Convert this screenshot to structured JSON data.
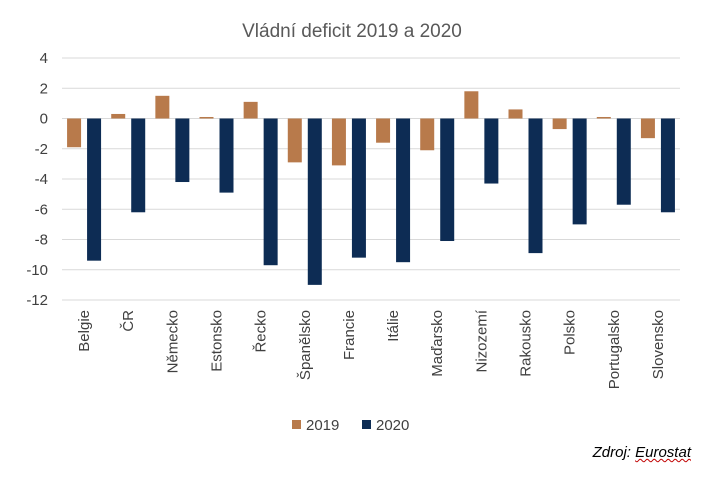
{
  "chart_data": {
    "type": "bar",
    "title": "Vládní deficit 2019 a 2020",
    "categories": [
      "Belgie",
      "ČR",
      "Německo",
      "Estonsko",
      "Řecko",
      "Španělsko",
      "Francie",
      "Itálie",
      "Maďarsko",
      "Nizozemí",
      "Rakousko",
      "Polsko",
      "Portugalsko",
      "Slovensko"
    ],
    "series": [
      {
        "name": "2019",
        "color": "#b87a4b",
        "values": [
          -1.9,
          0.3,
          1.5,
          0.1,
          1.1,
          -2.9,
          -3.1,
          -1.6,
          -2.1,
          1.8,
          0.6,
          -0.7,
          0.1,
          -1.3
        ]
      },
      {
        "name": "2020",
        "color": "#0d2c54",
        "values": [
          -9.4,
          -6.2,
          -4.2,
          -4.9,
          -9.7,
          -11.0,
          -9.2,
          -9.5,
          -8.1,
          -4.3,
          -8.9,
          -7.0,
          -5.7,
          -6.2
        ]
      }
    ],
    "ylim": [
      -12,
      4
    ],
    "yticks": [
      4,
      2,
      0,
      -2,
      -4,
      -6,
      -8,
      -10,
      -12
    ],
    "grid": true,
    "legend_position": "bottom",
    "xlabel": "",
    "ylabel": ""
  },
  "source": {
    "label": "Zdroj: ",
    "name": "Eurostat"
  }
}
